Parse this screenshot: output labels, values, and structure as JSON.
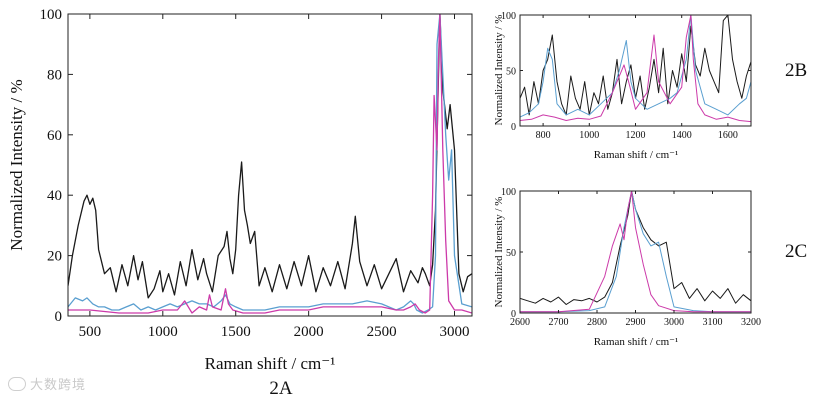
{
  "colors": {
    "black": "#1a1a1a",
    "blue": "#5a9fd0",
    "magenta": "#cc3aa9",
    "axis": "#222222"
  },
  "watermark": {
    "text": "大数跨境"
  },
  "chart_data": [
    {
      "id": "2A",
      "type": "line",
      "panel_label": "2A",
      "xlabel": "Raman shift / cm⁻¹",
      "ylabel": "Normalized Intensity / %",
      "xlim": [
        350,
        3120
      ],
      "ylim": [
        0,
        100
      ],
      "xticks": [
        500,
        1000,
        1500,
        2000,
        2500,
        3000
      ],
      "yticks": [
        0,
        20,
        40,
        60,
        80,
        100
      ],
      "series": [
        {
          "name": "black",
          "color": "#1a1a1a",
          "x": [
            350,
            380,
            420,
            460,
            480,
            500,
            520,
            540,
            560,
            600,
            640,
            680,
            720,
            760,
            800,
            830,
            860,
            900,
            940,
            980,
            1000,
            1040,
            1080,
            1120,
            1160,
            1200,
            1240,
            1280,
            1300,
            1340,
            1380,
            1420,
            1440,
            1460,
            1480,
            1500,
            1520,
            1540,
            1560,
            1580,
            1600,
            1630,
            1660,
            1700,
            1750,
            1800,
            1850,
            1900,
            1950,
            2000,
            2050,
            2100,
            2150,
            2200,
            2250,
            2300,
            2320,
            2350,
            2400,
            2450,
            2500,
            2550,
            2600,
            2650,
            2700,
            2750,
            2780,
            2800,
            2830,
            2850,
            2870,
            2890,
            2900,
            2920,
            2950,
            2970,
            3000,
            3030,
            3060,
            3090,
            3120
          ],
          "y": [
            10,
            20,
            30,
            38,
            40,
            37,
            39,
            35,
            22,
            14,
            16,
            8,
            17,
            10,
            20,
            12,
            18,
            6,
            9,
            15,
            8,
            14,
            7,
            18,
            10,
            22,
            12,
            19,
            14,
            8,
            20,
            23,
            28,
            19,
            14,
            22,
            40,
            51,
            35,
            30,
            24,
            28,
            10,
            16,
            8,
            17,
            9,
            18,
            10,
            20,
            8,
            16,
            10,
            18,
            9,
            24,
            33,
            18,
            10,
            17,
            9,
            14,
            19,
            8,
            15,
            11,
            16,
            14,
            10,
            17,
            35,
            80,
            100,
            75,
            62,
            70,
            55,
            14,
            8,
            13,
            14
          ]
        },
        {
          "name": "blue",
          "color": "#5a9fd0",
          "x": [
            350,
            400,
            450,
            480,
            520,
            560,
            600,
            650,
            700,
            750,
            800,
            850,
            900,
            950,
            1000,
            1050,
            1100,
            1150,
            1200,
            1250,
            1300,
            1350,
            1400,
            1430,
            1460,
            1500,
            1550,
            1600,
            1700,
            1800,
            1900,
            2000,
            2100,
            2200,
            2300,
            2400,
            2500,
            2600,
            2650,
            2700,
            2720,
            2740,
            2780,
            2820,
            2850,
            2870,
            2880,
            2900,
            2920,
            2940,
            2960,
            2980,
            3000,
            3050,
            3120
          ],
          "y": [
            3,
            6,
            5,
            6,
            4,
            3,
            3,
            2,
            2,
            3,
            4,
            2,
            3,
            2,
            3,
            4,
            3,
            4,
            5,
            4,
            4,
            3,
            5,
            7,
            4,
            3,
            2,
            2,
            2,
            3,
            3,
            3,
            4,
            4,
            4,
            5,
            4,
            2,
            3,
            5,
            4,
            2,
            1,
            2,
            3,
            20,
            90,
            100,
            80,
            60,
            45,
            55,
            20,
            4,
            3
          ]
        },
        {
          "name": "magenta",
          "color": "#cc3aa9",
          "x": [
            350,
            500,
            700,
            900,
            1000,
            1100,
            1150,
            1200,
            1250,
            1300,
            1320,
            1340,
            1400,
            1430,
            1450,
            1480,
            1550,
            1600,
            1700,
            1800,
            1900,
            2000,
            2100,
            2200,
            2300,
            2400,
            2500,
            2600,
            2650,
            2700,
            2730,
            2760,
            2800,
            2830,
            2850,
            2860,
            2880,
            2890,
            2900,
            2920,
            2940,
            2960,
            3000,
            3050,
            3120
          ],
          "y": [
            2,
            2,
            1,
            1,
            2,
            2,
            5,
            1,
            3,
            2,
            7,
            3,
            2,
            9,
            4,
            2,
            1,
            1,
            1,
            2,
            2,
            2,
            3,
            3,
            3,
            3,
            3,
            2,
            2,
            3,
            4,
            2,
            1,
            2,
            40,
            73,
            55,
            85,
            100,
            55,
            25,
            5,
            2,
            2,
            1
          ]
        }
      ]
    },
    {
      "id": "2B",
      "type": "line",
      "panel_label": "2B",
      "xlabel": "Raman shift / cm⁻¹",
      "ylabel": "Normalized Intensity / %",
      "xlim": [
        700,
        1700
      ],
      "ylim": [
        0,
        100
      ],
      "xticks": [
        800,
        1000,
        1200,
        1400,
        1600
      ],
      "yticks": [
        0,
        50,
        100
      ],
      "series": [
        {
          "name": "black",
          "color": "#1a1a1a",
          "x": [
            700,
            720,
            740,
            760,
            780,
            800,
            820,
            840,
            860,
            880,
            900,
            920,
            940,
            960,
            980,
            1000,
            1020,
            1040,
            1060,
            1080,
            1100,
            1120,
            1140,
            1160,
            1180,
            1200,
            1220,
            1240,
            1260,
            1280,
            1300,
            1320,
            1340,
            1360,
            1380,
            1400,
            1420,
            1440,
            1460,
            1480,
            1500,
            1520,
            1540,
            1560,
            1580,
            1600,
            1620,
            1640,
            1660,
            1680,
            1700
          ],
          "y": [
            25,
            35,
            10,
            40,
            20,
            50,
            60,
            82,
            40,
            20,
            10,
            45,
            25,
            15,
            40,
            10,
            30,
            20,
            45,
            15,
            30,
            60,
            20,
            40,
            55,
            25,
            45,
            15,
            35,
            60,
            30,
            70,
            20,
            50,
            35,
            65,
            40,
            90,
            55,
            45,
            70,
            50,
            40,
            30,
            95,
            100,
            60,
            40,
            25,
            45,
            58
          ]
        },
        {
          "name": "blue",
          "color": "#5a9fd0",
          "x": [
            700,
            740,
            780,
            800,
            820,
            840,
            860,
            900,
            950,
            1000,
            1050,
            1100,
            1130,
            1160,
            1180,
            1200,
            1250,
            1300,
            1350,
            1380,
            1400,
            1420,
            1440,
            1460,
            1500,
            1550,
            1600,
            1650,
            1680,
            1700
          ],
          "y": [
            8,
            12,
            20,
            40,
            70,
            60,
            20,
            10,
            15,
            10,
            20,
            30,
            50,
            77,
            40,
            25,
            15,
            20,
            25,
            30,
            45,
            60,
            100,
            50,
            20,
            15,
            10,
            20,
            25,
            40
          ]
        },
        {
          "name": "magenta",
          "color": "#cc3aa9",
          "x": [
            700,
            750,
            800,
            850,
            900,
            950,
            1000,
            1050,
            1100,
            1150,
            1170,
            1200,
            1250,
            1280,
            1300,
            1350,
            1400,
            1420,
            1440,
            1450,
            1470,
            1500,
            1550,
            1600,
            1650,
            1700
          ],
          "y": [
            5,
            6,
            10,
            8,
            5,
            7,
            6,
            9,
            30,
            55,
            40,
            15,
            30,
            82,
            40,
            20,
            35,
            80,
            100,
            60,
            20,
            10,
            6,
            8,
            5,
            4
          ]
        }
      ]
    },
    {
      "id": "2C",
      "type": "line",
      "panel_label": "2C",
      "xlabel": "Raman shift / cm⁻¹",
      "ylabel": "Normalized Intensity / %",
      "xlim": [
        2600,
        3200
      ],
      "ylim": [
        0,
        100
      ],
      "xticks": [
        2600,
        2700,
        2800,
        2900,
        3000,
        3100,
        3200
      ],
      "yticks": [
        0,
        50,
        100
      ],
      "series": [
        {
          "name": "black",
          "color": "#1a1a1a",
          "x": [
            2600,
            2620,
            2640,
            2660,
            2680,
            2700,
            2720,
            2740,
            2760,
            2780,
            2800,
            2820,
            2840,
            2860,
            2880,
            2890,
            2900,
            2920,
            2940,
            2960,
            2980,
            3000,
            3020,
            3040,
            3060,
            3080,
            3100,
            3120,
            3140,
            3160,
            3180,
            3200
          ],
          "y": [
            12,
            10,
            8,
            12,
            9,
            13,
            7,
            11,
            10,
            12,
            9,
            13,
            25,
            55,
            80,
            100,
            85,
            70,
            60,
            55,
            58,
            20,
            25,
            12,
            20,
            10,
            18,
            12,
            20,
            8,
            15,
            10
          ]
        },
        {
          "name": "blue",
          "color": "#5a9fd0",
          "x": [
            2600,
            2700,
            2780,
            2820,
            2850,
            2870,
            2890,
            2900,
            2920,
            2940,
            2960,
            2980,
            3000,
            3050,
            3100,
            3200
          ],
          "y": [
            1,
            1,
            2,
            5,
            30,
            70,
            100,
            85,
            65,
            55,
            58,
            30,
            5,
            2,
            1,
            1
          ]
        },
        {
          "name": "magenta",
          "color": "#cc3aa9",
          "x": [
            2600,
            2700,
            2780,
            2820,
            2840,
            2860,
            2870,
            2880,
            2890,
            2900,
            2920,
            2940,
            2960,
            3000,
            3050,
            3100,
            3200
          ],
          "y": [
            1,
            1,
            3,
            30,
            55,
            73,
            60,
            85,
            100,
            70,
            40,
            15,
            6,
            2,
            1,
            1,
            1
          ]
        }
      ]
    }
  ]
}
